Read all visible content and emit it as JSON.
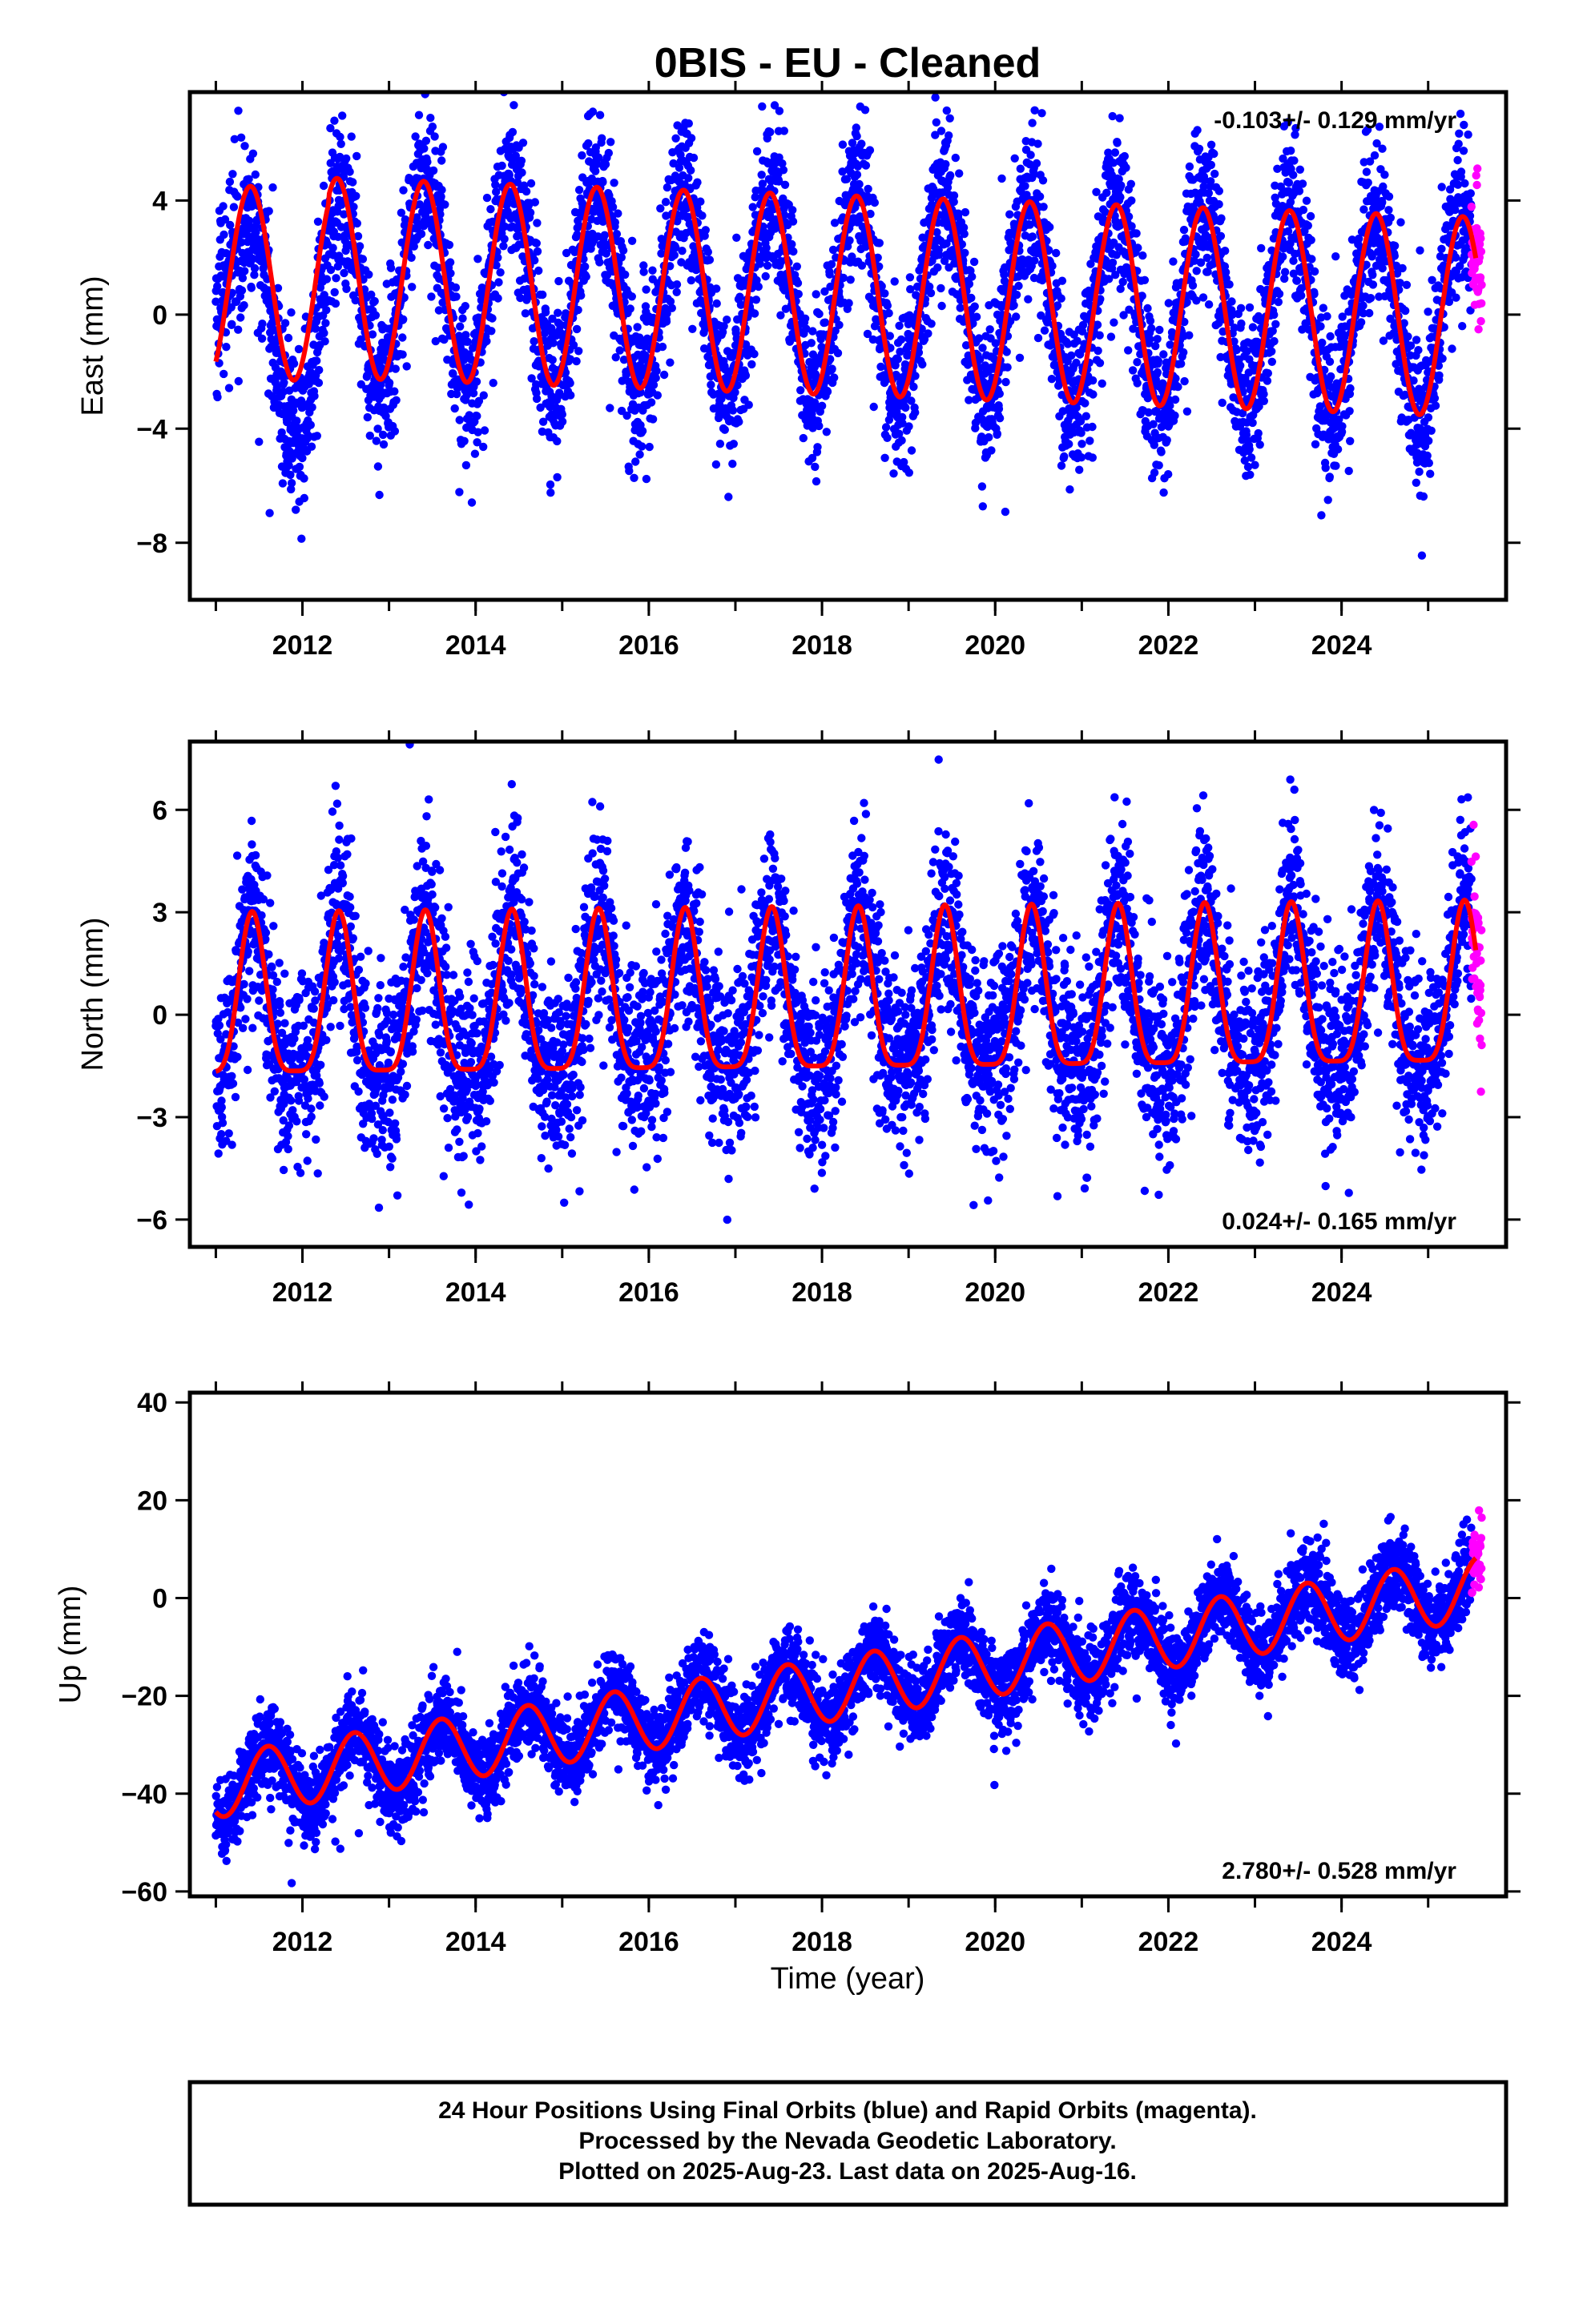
{
  "title": "0BIS  - EU - Cleaned",
  "xlabel": "Time (year)",
  "colors": {
    "final": "#0000ff",
    "rapid": "#ff00ff",
    "model": "#ff0000",
    "frame": "#000000"
  },
  "footer": {
    "lines": [
      "24 Hour Positions Using Final Orbits (blue) and Rapid Orbits (magenta).",
      "Processed by the Nevada Geodetic Laboratory.",
      "Plotted on 2025-Aug-23. Last data on 2025-Aug-16."
    ]
  },
  "chart_data": [
    {
      "type": "scatter",
      "component": "east",
      "ylabel": "East (mm)",
      "xlim": [
        2010.7,
        2025.9
      ],
      "ylim": [
        -10,
        7.8
      ],
      "x_ticks": [
        2012,
        2014,
        2016,
        2018,
        2020,
        2022,
        2024
      ],
      "y_ticks": [
        -8,
        -4,
        0,
        4
      ],
      "rate_label": "-0.103+/- 0.129 mm/yr",
      "rate_position": "top-right",
      "model": {
        "start": 2011.0,
        "end": 2025.55,
        "intercept": 0.7,
        "trend_mm_per_yr": -0.103,
        "amplitude_mm": 3.5,
        "peak_year_fraction": 0.4
      },
      "anomaly": {
        "start": 2011.0,
        "end": 2012.6,
        "center": 2011.95,
        "width": 0.35,
        "depth_mm": -3.0
      },
      "scatter_std_mm": 1.4,
      "data_range": {
        "final_start": 2011.0,
        "final_end": 2025.5,
        "rapid_start": 2025.5,
        "rapid_end": 2025.62
      },
      "series": [
        {
          "name": "Final Orbits (blue)"
        },
        {
          "name": "Rapid Orbits (magenta)"
        },
        {
          "name": "Model (red)"
        }
      ]
    },
    {
      "type": "scatter",
      "component": "north",
      "ylabel": "North (mm)",
      "xlim": [
        2010.7,
        2025.9
      ],
      "ylim": [
        -6.8,
        8.0
      ],
      "x_ticks": [
        2012,
        2014,
        2016,
        2018,
        2020,
        2022,
        2024
      ],
      "y_ticks": [
        -6,
        -3,
        0,
        3,
        6
      ],
      "rate_label": "0.024+/- 0.165 mm/yr",
      "rate_position": "bottom-right",
      "model": {
        "start": 2011.0,
        "end": 2025.55,
        "intercept": 0.0,
        "trend_mm_per_yr": 0.024,
        "amplitude_mm": 2.4,
        "peak_year_fraction": 0.42
      },
      "anomaly": null,
      "scatter_std_mm": 1.35,
      "data_range": {
        "final_start": 2011.0,
        "final_end": 2025.5,
        "rapid_start": 2025.5,
        "rapid_end": 2025.62
      },
      "series": [
        {
          "name": "Final Orbits (blue)"
        },
        {
          "name": "Rapid Orbits (magenta)"
        },
        {
          "name": "Model (red)"
        }
      ]
    },
    {
      "type": "scatter",
      "component": "up",
      "ylabel": "Up (mm)",
      "xlim": [
        2010.7,
        2025.9
      ],
      "ylim": [
        -61,
        42
      ],
      "x_ticks": [
        2012,
        2014,
        2016,
        2018,
        2020,
        2022,
        2024
      ],
      "y_ticks": [
        -60,
        -40,
        -20,
        0,
        20,
        40
      ],
      "rate_label": "2.780+/- 0.528 mm/yr",
      "rate_position": "bottom-right",
      "model": {
        "start": 2011.0,
        "end": 2025.55,
        "intercept": -19.0,
        "trend_mm_per_yr": 2.78,
        "amplitude_mm": 6.5,
        "peak_year_fraction": 0.6
      },
      "anomaly": null,
      "scatter_std_mm": 4.2,
      "data_range": {
        "final_start": 2011.0,
        "final_end": 2025.5,
        "rapid_start": 2025.5,
        "rapid_end": 2025.62
      },
      "series": [
        {
          "name": "Final Orbits (blue)"
        },
        {
          "name": "Rapid Orbits (magenta)"
        },
        {
          "name": "Model (red)"
        }
      ]
    }
  ]
}
